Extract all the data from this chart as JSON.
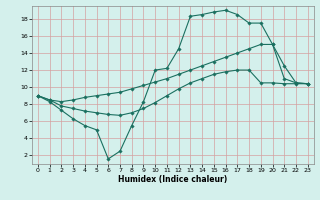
{
  "title": "",
  "xlabel": "Humidex (Indice chaleur)",
  "bg_color": "#d4f0ec",
  "grid_color": "#d4a0a0",
  "line_color": "#1a7060",
  "xlim": [
    -0.5,
    23.5
  ],
  "ylim": [
    1,
    19.5
  ],
  "xticks": [
    0,
    1,
    2,
    3,
    4,
    5,
    6,
    7,
    8,
    9,
    10,
    11,
    12,
    13,
    14,
    15,
    16,
    17,
    18,
    19,
    20,
    21,
    22,
    23
  ],
  "yticks": [
    2,
    4,
    6,
    8,
    10,
    12,
    14,
    16,
    18
  ],
  "line1_x": [
    0,
    1,
    2,
    3,
    4,
    5,
    6,
    7,
    8,
    9,
    10,
    11,
    12,
    13,
    14,
    15,
    16,
    17,
    18,
    19,
    20,
    21,
    22,
    23
  ],
  "line1_y": [
    9.0,
    8.3,
    7.3,
    6.3,
    5.5,
    5.0,
    1.6,
    2.5,
    5.5,
    8.3,
    12.0,
    12.2,
    14.5,
    18.3,
    18.5,
    18.8,
    19.0,
    18.5,
    17.5,
    17.5,
    15.0,
    12.5,
    10.5,
    10.4
  ],
  "line2_x": [
    0,
    1,
    2,
    3,
    4,
    5,
    6,
    7,
    8,
    9,
    10,
    11,
    12,
    13,
    14,
    15,
    16,
    17,
    18,
    19,
    20,
    21,
    22,
    23
  ],
  "line2_y": [
    9.0,
    8.5,
    8.3,
    8.5,
    8.8,
    9.0,
    9.2,
    9.4,
    9.8,
    10.2,
    10.6,
    11.0,
    11.5,
    12.0,
    12.5,
    13.0,
    13.5,
    14.0,
    14.5,
    15.0,
    15.0,
    11.0,
    10.5,
    10.4
  ],
  "line3_x": [
    0,
    1,
    2,
    3,
    4,
    5,
    6,
    7,
    8,
    9,
    10,
    11,
    12,
    13,
    14,
    15,
    16,
    17,
    18,
    19,
    20,
    21,
    22,
    23
  ],
  "line3_y": [
    9.0,
    8.5,
    7.8,
    7.5,
    7.2,
    7.0,
    6.8,
    6.7,
    7.0,
    7.5,
    8.2,
    9.0,
    9.8,
    10.5,
    11.0,
    11.5,
    11.8,
    12.0,
    12.0,
    10.5,
    10.5,
    10.4,
    10.4,
    10.4
  ]
}
